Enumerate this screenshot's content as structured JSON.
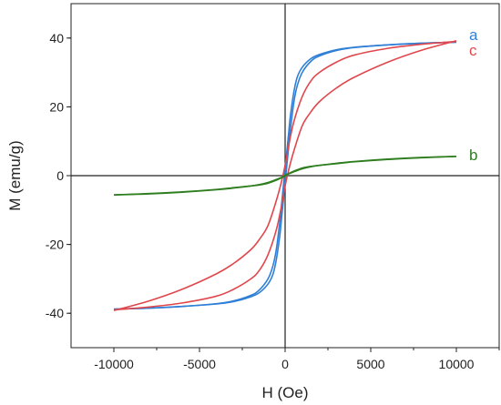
{
  "chart_data": {
    "type": "line",
    "title": "",
    "xlabel": "H (Oe)",
    "ylabel": "M (emu/g)",
    "xlim": [
      -12500,
      12500
    ],
    "ylim": [
      -50,
      50
    ],
    "xticks": [
      -10000,
      -5000,
      0,
      5000,
      10000
    ],
    "yticks": [
      -40,
      -20,
      0,
      20,
      40
    ],
    "x_tick_labels": [
      "-10000",
      "-5000",
      "0",
      "5000",
      "10000"
    ],
    "y_tick_labels": [
      "-40",
      "-20",
      "0",
      "20",
      "40"
    ],
    "zero_lines": true,
    "grid": false,
    "series": [
      {
        "name": "a",
        "color": "#2f7fd6",
        "hysteresis": true,
        "descending": [
          {
            "x": 10000,
            "y": 38.8
          },
          {
            "x": 8000,
            "y": 38.5
          },
          {
            "x": 6000,
            "y": 38.0
          },
          {
            "x": 4000,
            "y": 37.2
          },
          {
            "x": 3000,
            "y": 36.4
          },
          {
            "x": 2000,
            "y": 34.8
          },
          {
            "x": 1500,
            "y": 33.2
          },
          {
            "x": 1000,
            "y": 30.0
          },
          {
            "x": 700,
            "y": 26.0
          },
          {
            "x": 500,
            "y": 21.0
          },
          {
            "x": 300,
            "y": 13.0
          },
          {
            "x": 200,
            "y": 8.0
          },
          {
            "x": 100,
            "y": 3.0
          },
          {
            "x": 0,
            "y": -2.0
          },
          {
            "x": -100,
            "y": -7.0
          },
          {
            "x": -200,
            "y": -12.0
          },
          {
            "x": -300,
            "y": -17.0
          },
          {
            "x": -500,
            "y": -24.0
          },
          {
            "x": -700,
            "y": -28.5
          },
          {
            "x": -1000,
            "y": -31.5
          },
          {
            "x": -1500,
            "y": -34.0
          },
          {
            "x": -2000,
            "y": -35.2
          },
          {
            "x": -3000,
            "y": -36.6
          },
          {
            "x": -4000,
            "y": -37.3
          },
          {
            "x": -6000,
            "y": -38.0
          },
          {
            "x": -8000,
            "y": -38.5
          },
          {
            "x": -10000,
            "y": -38.8
          }
        ]
      },
      {
        "name": "c",
        "color": "#e0474c",
        "hysteresis": true,
        "descending": [
          {
            "x": 10000,
            "y": 39.2
          },
          {
            "x": 8000,
            "y": 36.5
          },
          {
            "x": 6000,
            "y": 33.0
          },
          {
            "x": 4000,
            "y": 28.5
          },
          {
            "x": 3000,
            "y": 25.5
          },
          {
            "x": 2000,
            "y": 21.5
          },
          {
            "x": 1500,
            "y": 18.5
          },
          {
            "x": 1000,
            "y": 14.5
          },
          {
            "x": 500,
            "y": 7.0
          },
          {
            "x": 200,
            "y": 1.5
          },
          {
            "x": 0,
            "y": -3.0
          },
          {
            "x": -200,
            "y": -8.5
          },
          {
            "x": -500,
            "y": -15.5
          },
          {
            "x": -1000,
            "y": -23.0
          },
          {
            "x": -1500,
            "y": -27.5
          },
          {
            "x": -2000,
            "y": -30.0
          },
          {
            "x": -3000,
            "y": -33.0
          },
          {
            "x": -4000,
            "y": -35.0
          },
          {
            "x": -6000,
            "y": -37.0
          },
          {
            "x": -8000,
            "y": -38.2
          },
          {
            "x": -10000,
            "y": -39.0
          }
        ]
      },
      {
        "name": "b",
        "color": "#2e7d1f",
        "hysteresis": true,
        "descending": [
          {
            "x": 10000,
            "y": 5.6
          },
          {
            "x": 8000,
            "y": 5.2
          },
          {
            "x": 6000,
            "y": 4.7
          },
          {
            "x": 4000,
            "y": 4.0
          },
          {
            "x": 3000,
            "y": 3.5
          },
          {
            "x": 2000,
            "y": 3.0
          },
          {
            "x": 1500,
            "y": 2.7
          },
          {
            "x": 1000,
            "y": 2.2
          },
          {
            "x": 500,
            "y": 1.3
          },
          {
            "x": 200,
            "y": 0.6
          },
          {
            "x": 0,
            "y": 0.1
          },
          {
            "x": -200,
            "y": -0.5
          },
          {
            "x": -500,
            "y": -1.1
          },
          {
            "x": -1000,
            "y": -2.0
          },
          {
            "x": -1500,
            "y": -2.6
          },
          {
            "x": -2000,
            "y": -3.0
          },
          {
            "x": -3000,
            "y": -3.6
          },
          {
            "x": -4000,
            "y": -4.1
          },
          {
            "x": -6000,
            "y": -4.8
          },
          {
            "x": -8000,
            "y": -5.3
          },
          {
            "x": -10000,
            "y": -5.6
          }
        ]
      }
    ]
  }
}
